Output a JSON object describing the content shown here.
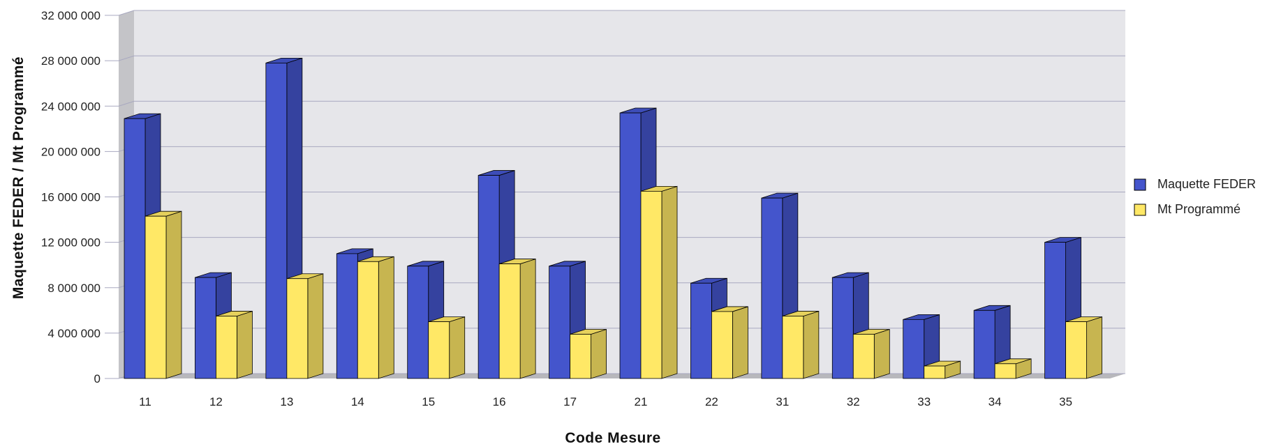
{
  "chart_data": {
    "type": "bar",
    "title": "",
    "xlabel": "Code Mesure",
    "ylabel": "Maquette FEDER / Mt Programmé",
    "categories": [
      "11",
      "12",
      "13",
      "14",
      "15",
      "16",
      "17",
      "21",
      "22",
      "31",
      "32",
      "33",
      "34",
      "35"
    ],
    "series": [
      {
        "name": "Maquette FEDER",
        "color": "#4455cc",
        "values": [
          22900000,
          8900000,
          27800000,
          11000000,
          9900000,
          17900000,
          9900000,
          23400000,
          8400000,
          15900000,
          8900000,
          5200000,
          6000000,
          12000000
        ]
      },
      {
        "name": "Mt Programmé",
        "color": "#ffe866",
        "values": [
          14300000,
          5500000,
          8800000,
          10300000,
          5000000,
          10100000,
          3900000,
          16500000,
          5900000,
          5500000,
          3900000,
          1100000,
          1300000,
          5000000
        ]
      }
    ],
    "yticks": [
      "0",
      "4 000 000",
      "8 000 000",
      "12 000 000",
      "16 000 000",
      "20 000 000",
      "24 000 000",
      "28 000 000",
      "32 000 000"
    ],
    "ylim": [
      0,
      32000000
    ],
    "grid": true,
    "legend_position": "right",
    "style": "3d-bar"
  }
}
